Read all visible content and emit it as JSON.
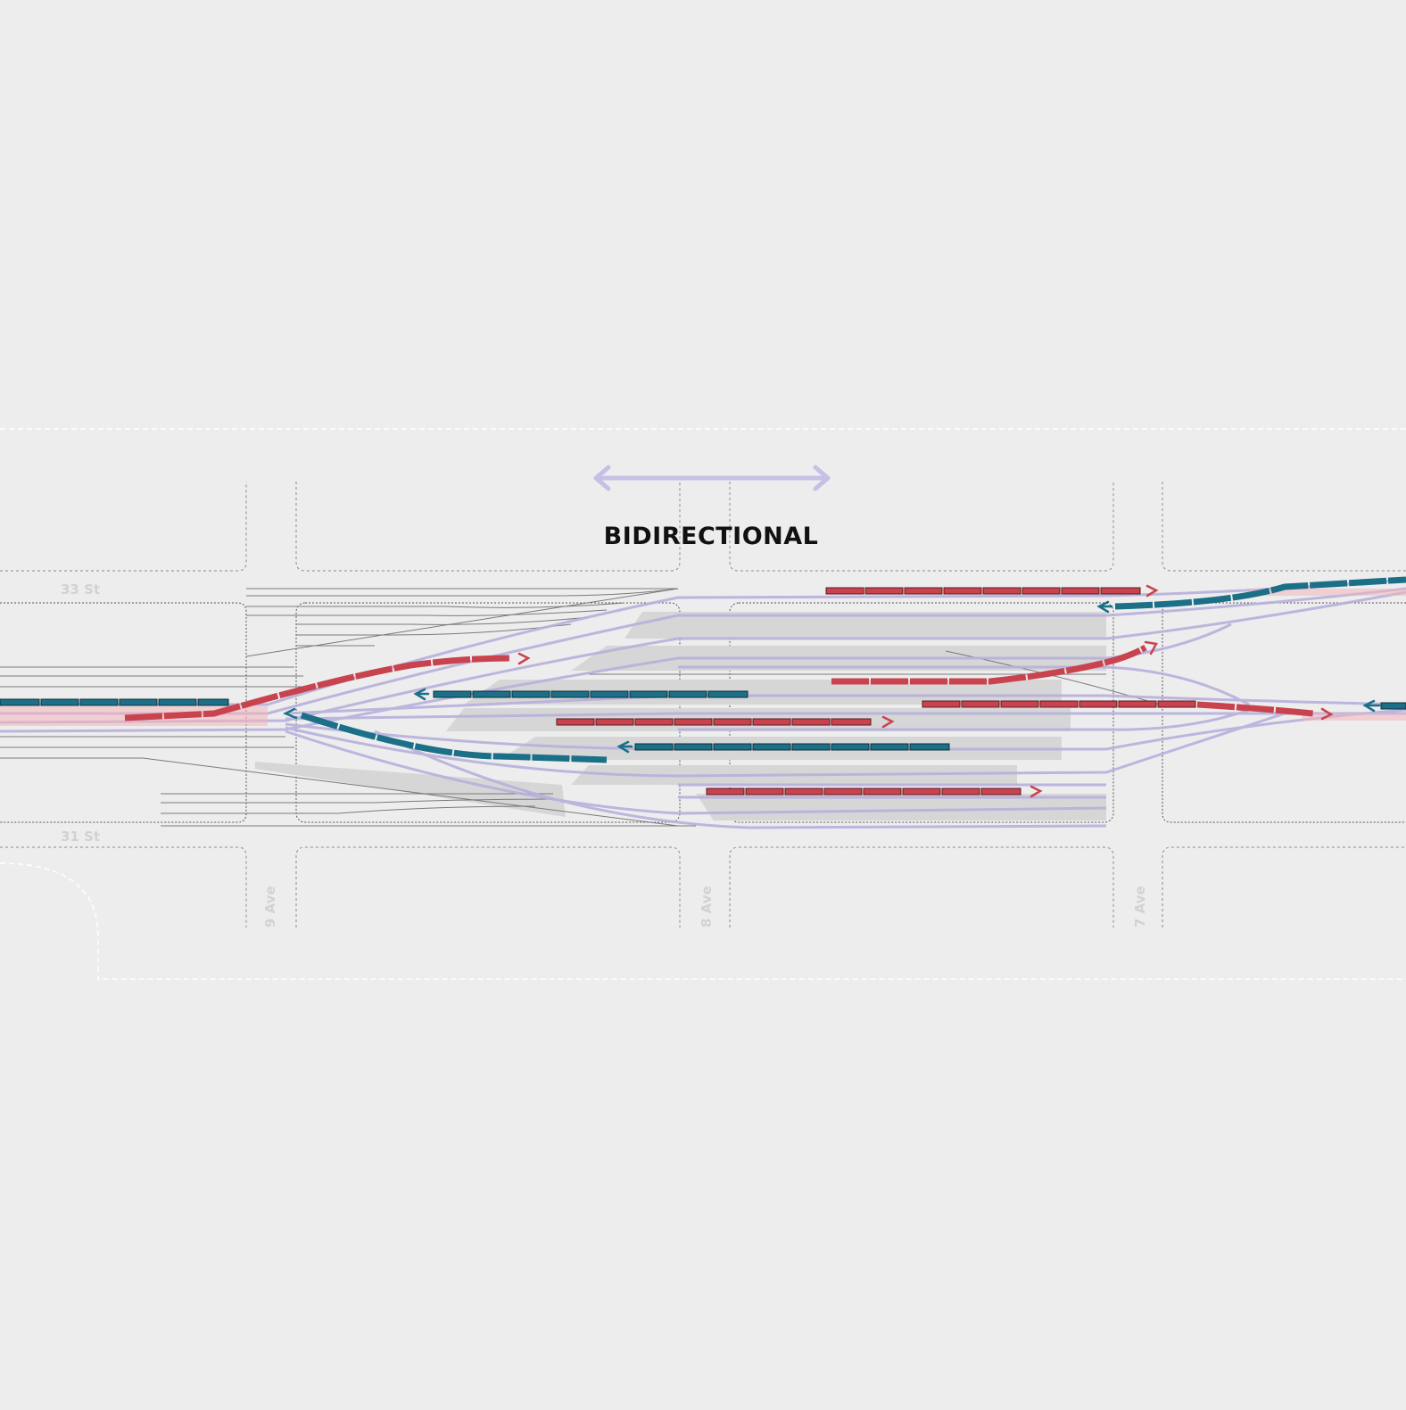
{
  "title": "BIDIRECTIONAL",
  "streets": {
    "st33": "33 St",
    "st31": "31 St",
    "ave9": "9 Ave",
    "ave8": "8 Ave",
    "ave7": "7 Ave"
  },
  "colors": {
    "background": "#ededed",
    "eastbound_train": "#c9434f",
    "westbound_train": "#1b6f87",
    "track_highlight": "#b7b0dc",
    "bidirectional_arrow": "#c6c0e6",
    "platform": "#d6d6d6"
  },
  "legend": {
    "icon": "double-headed-arrow-icon"
  }
}
